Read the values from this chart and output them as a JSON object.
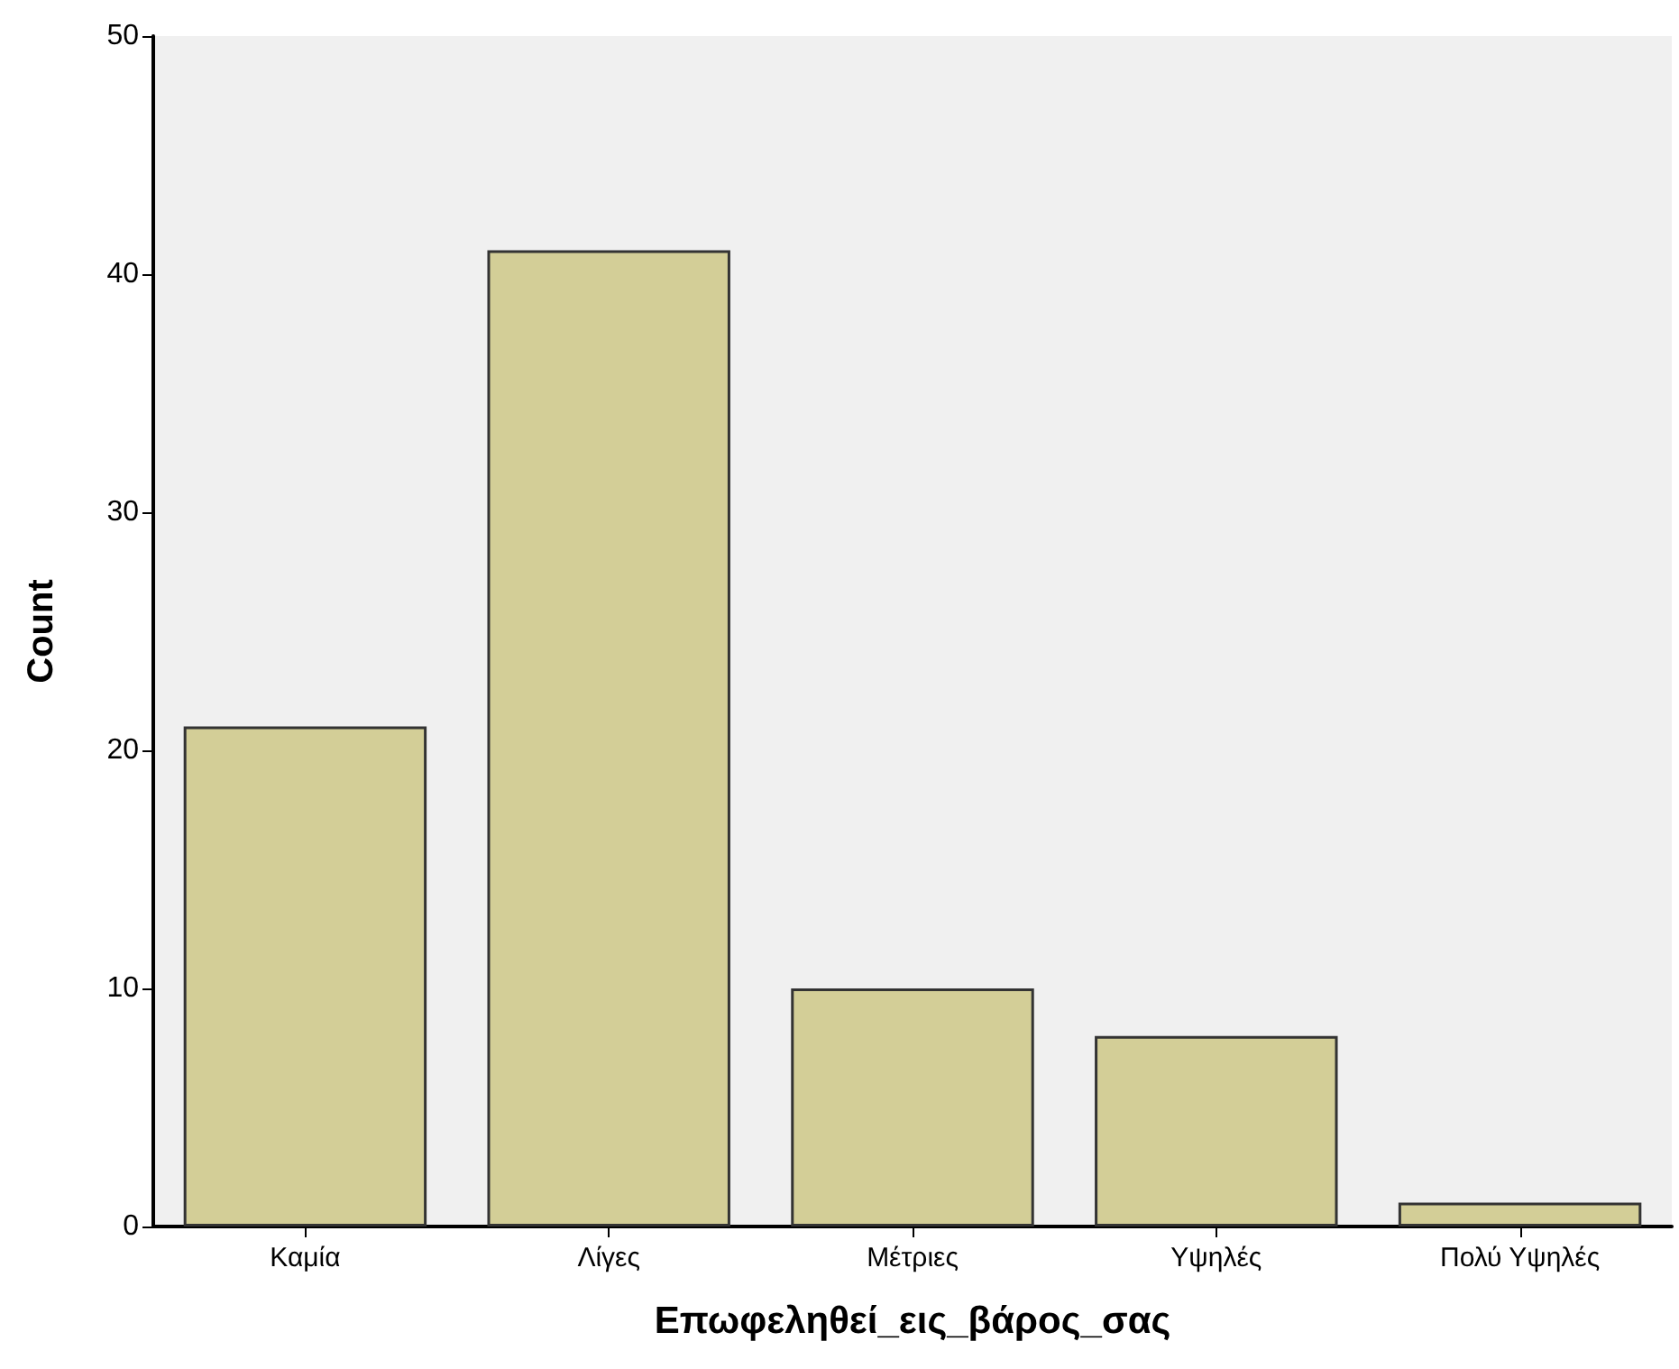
{
  "chart_data": {
    "type": "bar",
    "xlabel": "Επωφεληθεί_εις_βάρος_σας",
    "ylabel": "Count",
    "categories": [
      "Καμία",
      "Λίγες",
      "Μέτριες",
      "Υψηλές",
      "Πολύ Υψηλές"
    ],
    "values": [
      21,
      41,
      10,
      8,
      1
    ],
    "color": "#d3ce97",
    "ylim": [
      0,
      50
    ],
    "yticks": [
      0,
      10,
      20,
      30,
      40,
      50
    ],
    "grid": false
  }
}
